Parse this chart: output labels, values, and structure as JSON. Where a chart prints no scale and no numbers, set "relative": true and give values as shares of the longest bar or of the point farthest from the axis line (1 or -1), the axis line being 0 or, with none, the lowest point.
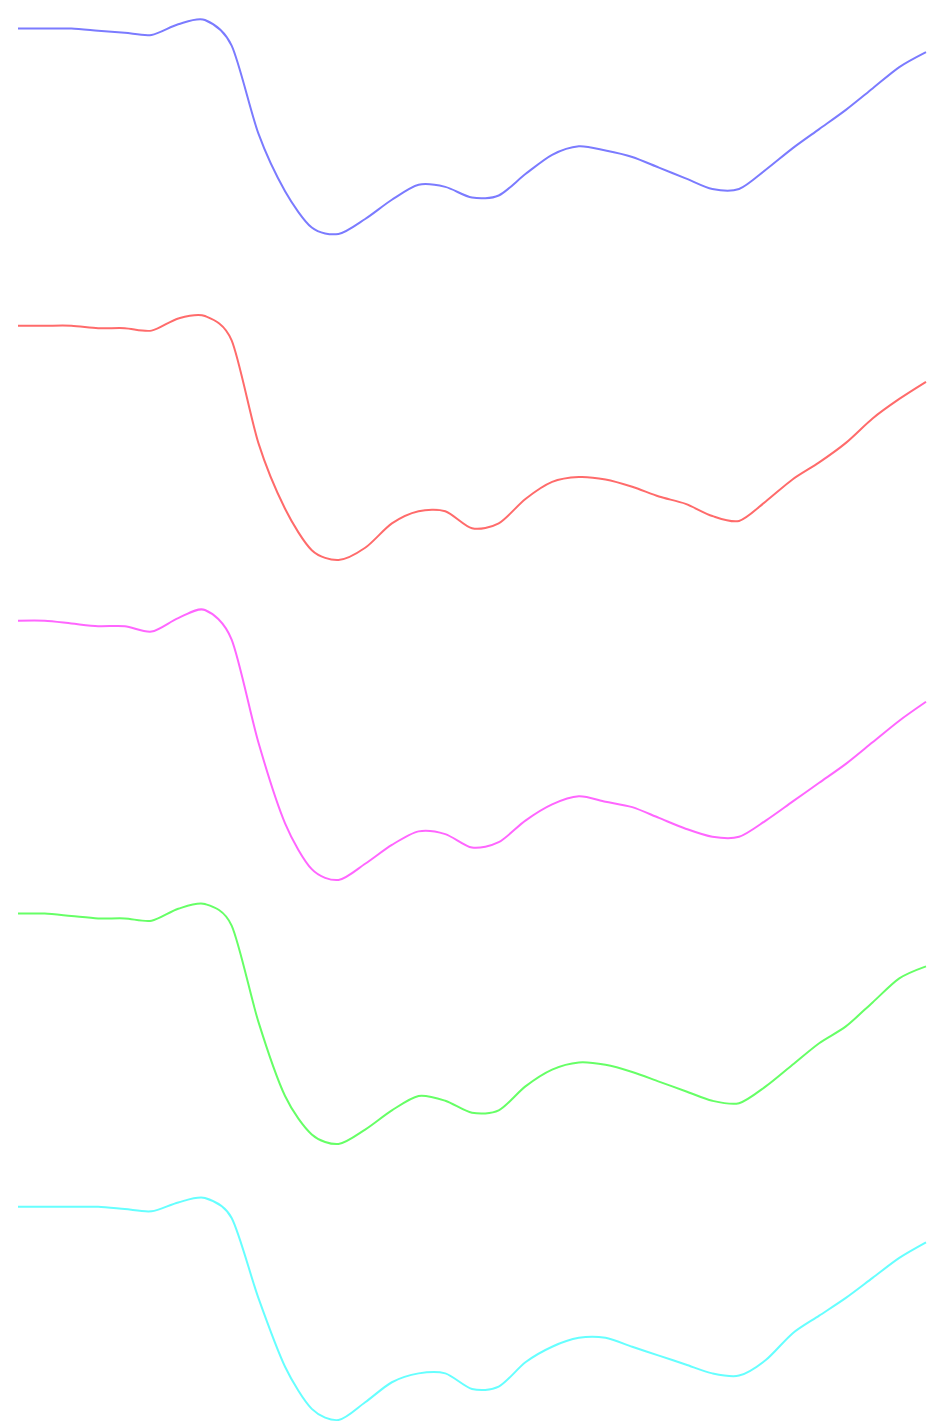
{
  "chart_data": [
    {
      "type": "line",
      "relative": true,
      "categories": [
        null,
        null,
        null,
        null,
        null,
        null,
        null,
        null,
        null,
        null,
        null,
        null,
        null,
        null,
        null,
        null,
        null,
        null,
        null,
        null,
        null,
        null,
        null,
        null,
        null,
        null,
        null,
        null,
        null,
        null,
        null,
        null,
        null,
        null,
        null
      ],
      "series": [
        {
          "color": "#7b7bff",
          "values": [
            0.96,
            0.96,
            0.96,
            0.95,
            0.94,
            0.93,
            0.98,
            1,
            0.88,
            0.47,
            0.2,
            0.03,
            0,
            0.07,
            0.16,
            0.23,
            0.22,
            0.17,
            0.18,
            0.28,
            0.37,
            0.41,
            0.39,
            0.36,
            0.31,
            0.26,
            0.21,
            0.21,
            0.3,
            0.4,
            0.49,
            0.58,
            0.68,
            0.78,
            0.85
          ]
        }
      ]
    },
    {
      "type": "line",
      "relative": true,
      "categories": [
        null,
        null,
        null,
        null,
        null,
        null,
        null,
        null,
        null,
        null,
        null,
        null,
        null,
        null,
        null,
        null,
        null,
        null,
        null,
        null,
        null,
        null,
        null,
        null,
        null,
        null,
        null,
        null,
        null,
        null,
        null,
        null,
        null,
        null,
        null
      ],
      "series": [
        {
          "color": "#ff6b6b",
          "values": [
            0.96,
            0.96,
            0.96,
            0.95,
            0.95,
            0.94,
            0.99,
            1,
            0.9,
            0.48,
            0.21,
            0.04,
            0,
            0.05,
            0.15,
            0.2,
            0.2,
            0.13,
            0.15,
            0.25,
            0.32,
            0.34,
            0.33,
            0.3,
            0.26,
            0.23,
            0.18,
            0.16,
            0.24,
            0.33,
            0.4,
            0.48,
            0.58,
            0.66,
            0.73
          ]
        }
      ]
    },
    {
      "type": "line",
      "relative": true,
      "categories": [
        null,
        null,
        null,
        null,
        null,
        null,
        null,
        null,
        null,
        null,
        null,
        null,
        null,
        null,
        null,
        null,
        null,
        null,
        null,
        null,
        null,
        null,
        null,
        null,
        null,
        null,
        null,
        null,
        null,
        null,
        null,
        null,
        null,
        null,
        null
      ],
      "series": [
        {
          "color": "#ff66ff",
          "values": [
            0.96,
            0.96,
            0.95,
            0.94,
            0.94,
            0.92,
            0.97,
            1,
            0.89,
            0.51,
            0.21,
            0.04,
            0,
            0.06,
            0.13,
            0.18,
            0.17,
            0.12,
            0.14,
            0.22,
            0.28,
            0.31,
            0.29,
            0.27,
            0.23,
            0.19,
            0.16,
            0.16,
            0.22,
            0.29,
            0.36,
            0.43,
            0.51,
            0.59,
            0.66
          ]
        }
      ]
    },
    {
      "type": "line",
      "relative": true,
      "categories": [
        null,
        null,
        null,
        null,
        null,
        null,
        null,
        null,
        null,
        null,
        null,
        null,
        null,
        null,
        null,
        null,
        null,
        null,
        null,
        null,
        null,
        null,
        null,
        null,
        null,
        null,
        null,
        null,
        null,
        null,
        null,
        null,
        null,
        null,
        null
      ],
      "series": [
        {
          "color": "#66ff66",
          "values": [
            0.96,
            0.96,
            0.95,
            0.94,
            0.94,
            0.93,
            0.98,
            1,
            0.91,
            0.51,
            0.2,
            0.04,
            0,
            0.06,
            0.14,
            0.2,
            0.18,
            0.13,
            0.14,
            0.24,
            0.31,
            0.34,
            0.33,
            0.3,
            0.26,
            0.22,
            0.18,
            0.17,
            0.24,
            0.33,
            0.42,
            0.49,
            0.59,
            0.69,
            0.74
          ]
        }
      ]
    },
    {
      "type": "line",
      "relative": true,
      "categories": [
        null,
        null,
        null,
        null,
        null,
        null,
        null,
        null,
        null,
        null,
        null,
        null,
        null,
        null,
        null,
        null,
        null,
        null,
        null,
        null,
        null,
        null,
        null,
        null,
        null,
        null,
        null,
        null,
        null,
        null,
        null,
        null,
        null,
        null,
        null
      ],
      "series": [
        {
          "color": "#66ffff",
          "values": [
            0.96,
            0.96,
            0.96,
            0.96,
            0.95,
            0.94,
            0.98,
            1,
            0.91,
            0.55,
            0.24,
            0.05,
            0,
            0.08,
            0.17,
            0.21,
            0.21,
            0.14,
            0.15,
            0.26,
            0.33,
            0.37,
            0.37,
            0.33,
            0.29,
            0.25,
            0.21,
            0.2,
            0.27,
            0.39,
            0.47,
            0.55,
            0.64,
            0.73,
            0.8
          ]
        }
      ]
    }
  ]
}
